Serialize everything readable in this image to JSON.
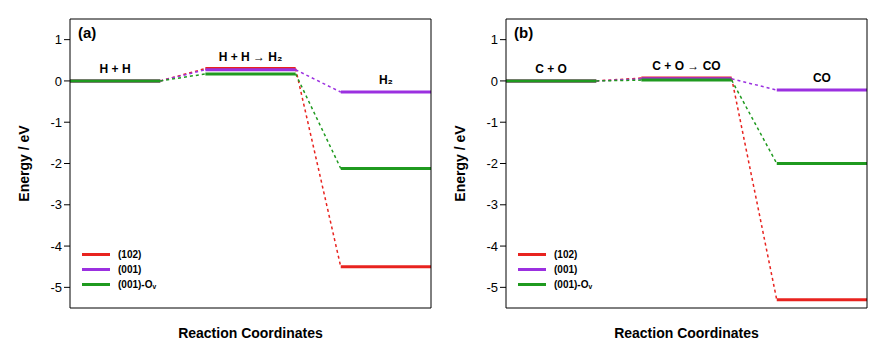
{
  "chart_data": [
    {
      "type": "line",
      "title": "(a)",
      "x_label": "Reaction Coordinates",
      "y_label": "Energy / eV",
      "categories": [
        "H + H",
        "H + H → H₂",
        "H₂"
      ],
      "series": [
        {
          "name": "(102)",
          "color": "#e8231f",
          "values": [
            0,
            0.3,
            -4.5
          ]
        },
        {
          "name": "(001)",
          "color": "#9b30e0",
          "values": [
            0,
            0.27,
            -0.27
          ]
        },
        {
          "name": "(001)-Oᵥ",
          "color": "#1f9a1f",
          "values": [
            0,
            0.17,
            -2.12
          ]
        }
      ],
      "ylim": [
        -5.5,
        1.5
      ],
      "yticks": [
        -5,
        -4,
        -3,
        -2,
        -1,
        0,
        1
      ],
      "tick_labels": "y",
      "legend": "lower left"
    },
    {
      "type": "line",
      "title": "(b)",
      "x_label": "Reaction Coordinates",
      "y_label": "Energy / eV",
      "categories": [
        "C + O",
        "C + O → CO",
        "CO"
      ],
      "series": [
        {
          "name": "(102)",
          "color": "#e8231f",
          "values": [
            0,
            0.07,
            -5.3
          ]
        },
        {
          "name": "(001)",
          "color": "#9b30e0",
          "values": [
            0,
            0.05,
            -0.22
          ]
        },
        {
          "name": "(001)-Oᵥ",
          "color": "#1f9a1f",
          "values": [
            0,
            0.02,
            -2.0
          ]
        }
      ],
      "ylim": [
        -5.5,
        1.5
      ],
      "yticks": [
        -5,
        -4,
        -3,
        -2,
        -1,
        0,
        1
      ],
      "tick_labels": "y",
      "legend": "lower left"
    }
  ]
}
